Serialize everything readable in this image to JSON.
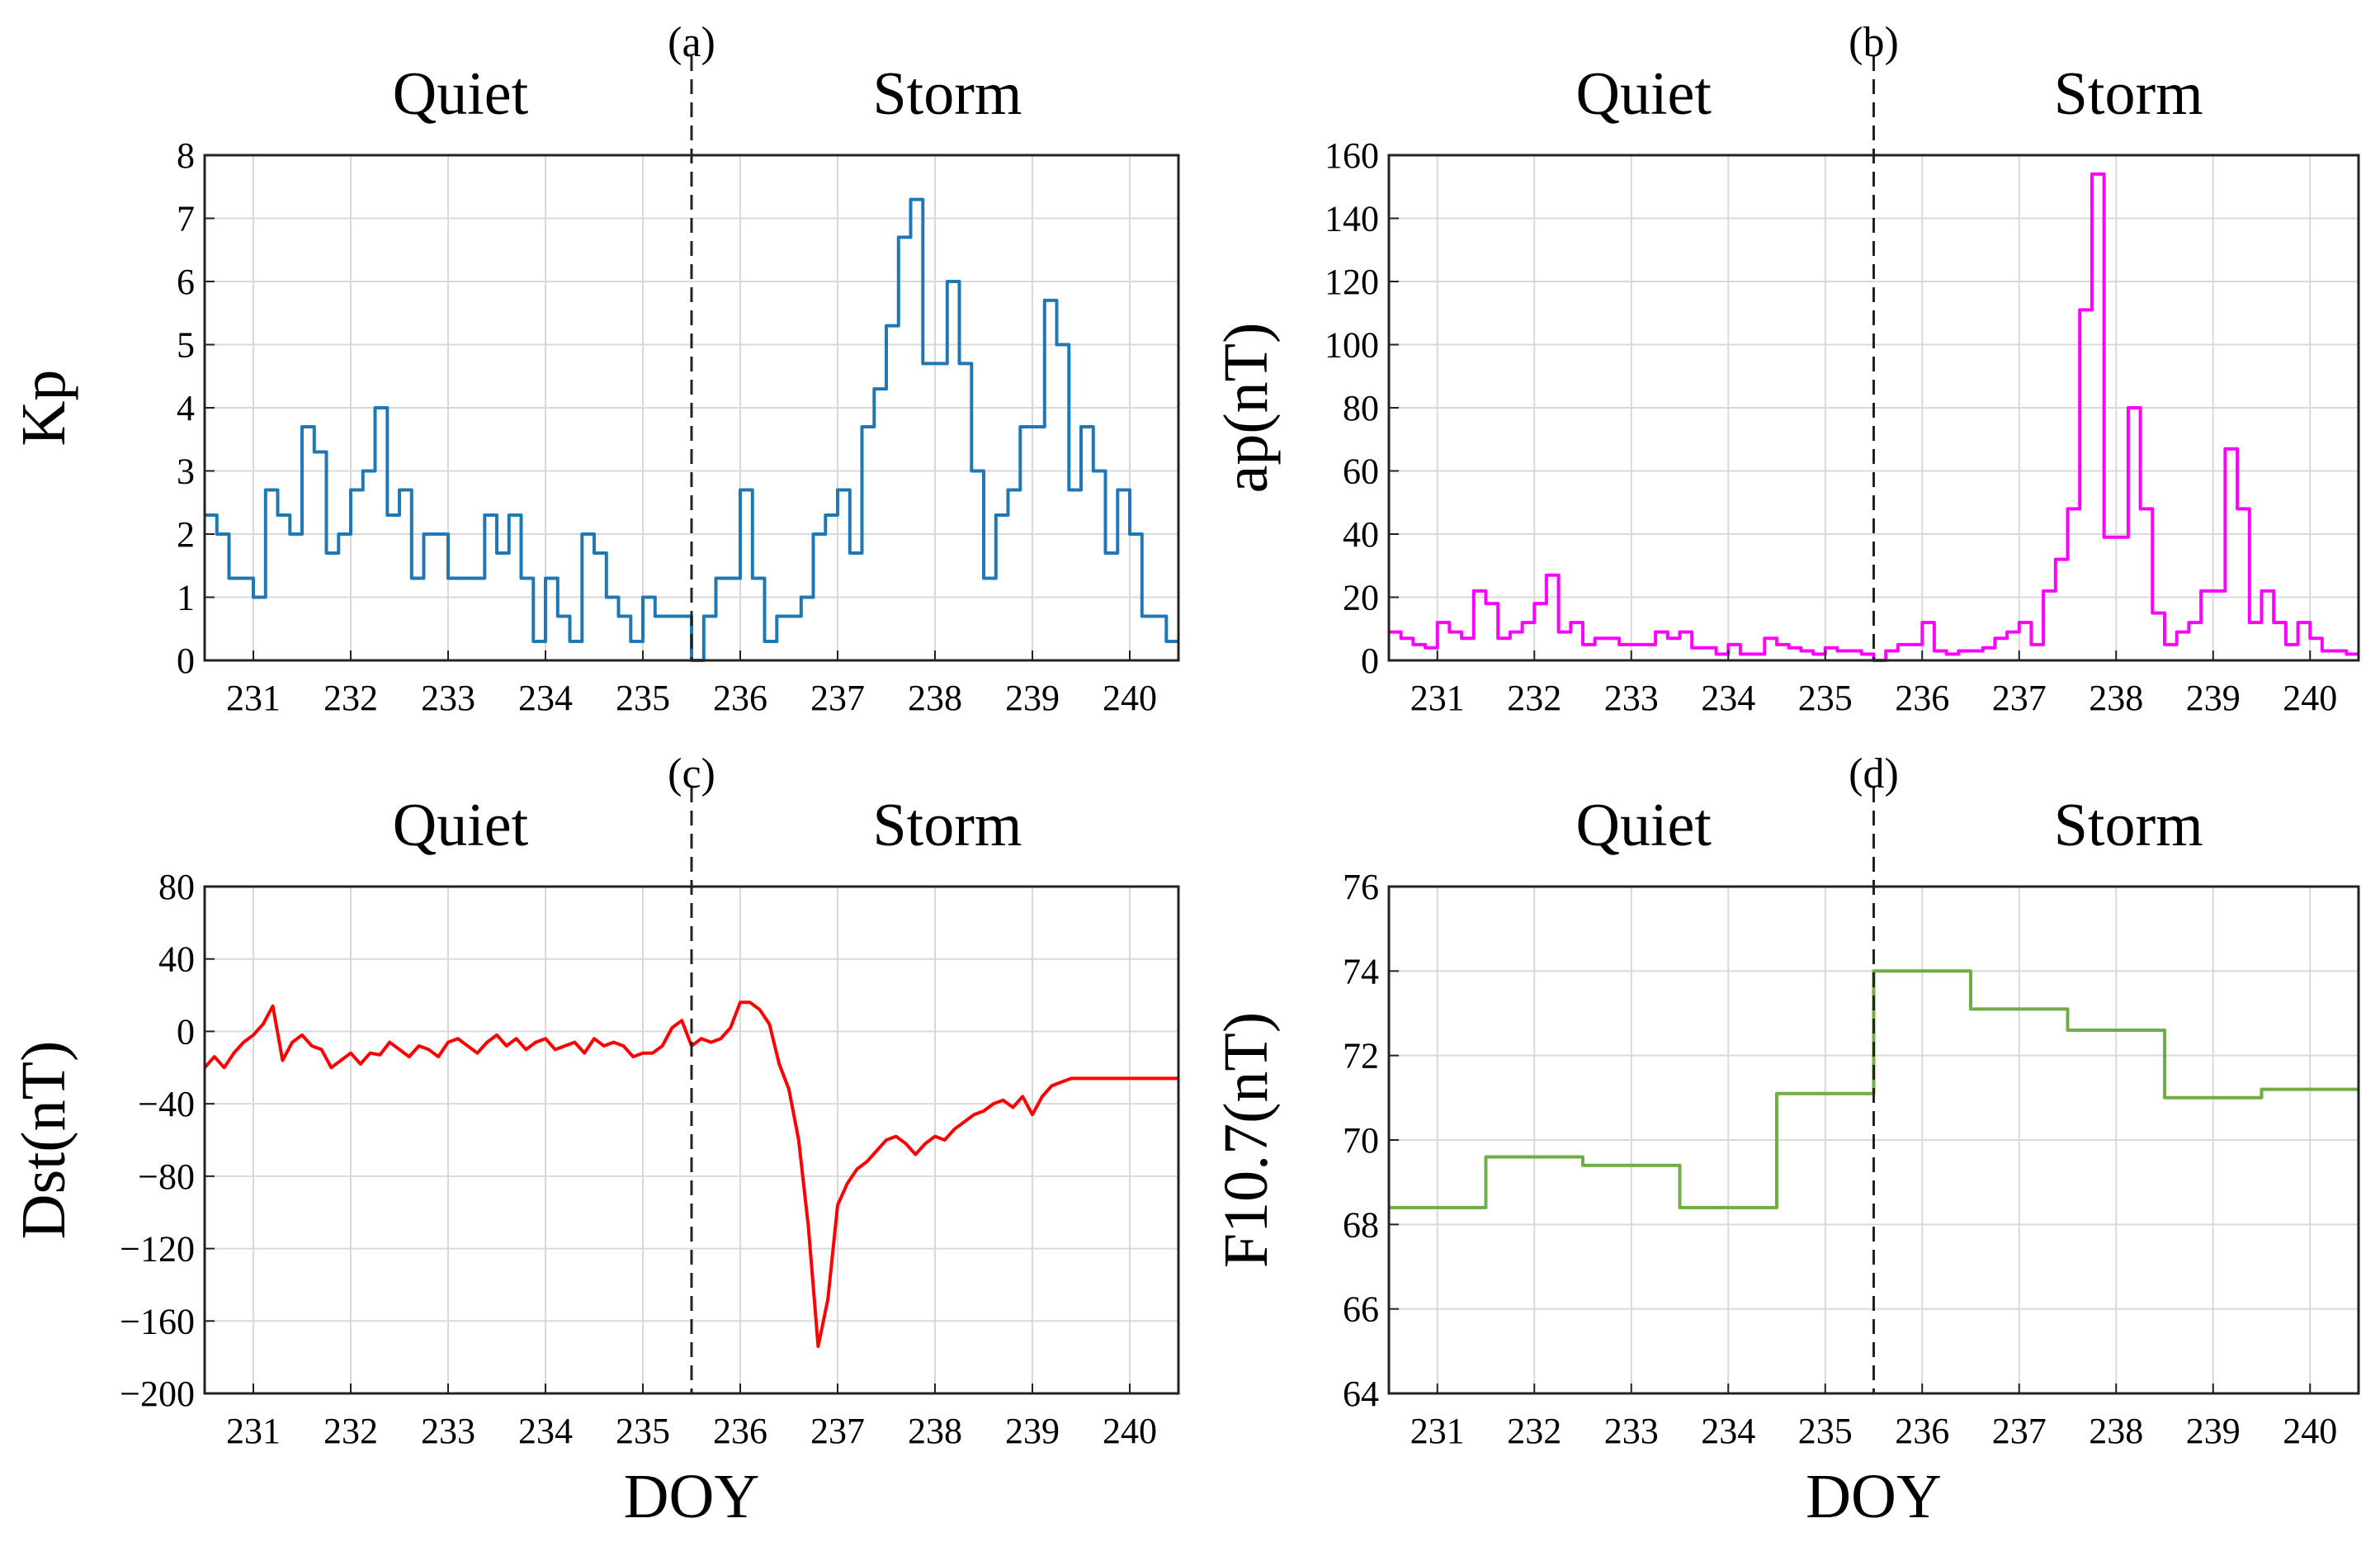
{
  "figure": {
    "shared_xlabel": "DOY",
    "divider_doy": 235.5,
    "period_labels": {
      "left": "Quiet",
      "right": "Storm"
    }
  },
  "chart_data": [
    {
      "id": "a",
      "panel_label": "(a)",
      "type": "line",
      "step": true,
      "color": "#1f77b4",
      "xlabel": "",
      "ylabel": "Kp",
      "xlim": [
        230.5,
        240.5
      ],
      "ylim": [
        0,
        8
      ],
      "xticks": [
        231,
        232,
        233,
        234,
        235,
        236,
        237,
        238,
        239,
        240
      ],
      "yticks": [
        0,
        1,
        2,
        3,
        4,
        5,
        6,
        7,
        8
      ],
      "x": [
        230.5,
        230.625,
        230.75,
        230.875,
        231.0,
        231.125,
        231.25,
        231.375,
        231.5,
        231.625,
        231.75,
        231.875,
        232.0,
        232.125,
        232.25,
        232.375,
        232.5,
        232.625,
        232.75,
        232.875,
        233.0,
        233.125,
        233.25,
        233.375,
        233.5,
        233.625,
        233.75,
        233.875,
        234.0,
        234.125,
        234.25,
        234.375,
        234.5,
        234.625,
        234.75,
        234.875,
        235.0,
        235.125,
        235.25,
        235.375,
        235.5,
        235.625,
        235.75,
        235.875,
        236.0,
        236.125,
        236.25,
        236.375,
        236.5,
        236.625,
        236.75,
        236.875,
        237.0,
        237.125,
        237.25,
        237.375,
        237.5,
        237.625,
        237.75,
        237.875,
        238.0,
        238.125,
        238.25,
        238.375,
        238.5,
        238.625,
        238.75,
        238.875,
        239.0,
        239.125,
        239.25,
        239.375,
        239.5,
        239.625,
        239.75,
        239.875,
        240.0,
        240.125,
        240.25,
        240.375,
        240.5
      ],
      "values": [
        2.3,
        2.0,
        1.3,
        1.3,
        1.0,
        2.7,
        2.3,
        2.0,
        3.7,
        3.3,
        1.7,
        2.0,
        2.7,
        3.0,
        4.0,
        2.3,
        2.7,
        1.3,
        2.0,
        2.0,
        1.3,
        1.3,
        1.3,
        2.3,
        1.7,
        2.3,
        1.3,
        0.3,
        1.3,
        0.7,
        0.3,
        2.0,
        1.7,
        1.0,
        0.7,
        0.3,
        1.0,
        0.7,
        0.7,
        0.7,
        0.0,
        0.7,
        1.3,
        1.3,
        2.7,
        1.3,
        0.3,
        0.7,
        0.7,
        1.0,
        2.0,
        2.3,
        2.7,
        1.7,
        3.7,
        4.3,
        5.3,
        6.7,
        7.3,
        4.7,
        4.7,
        6.0,
        4.7,
        3.0,
        1.3,
        2.3,
        2.7,
        3.7,
        3.7,
        5.7,
        5.0,
        2.7,
        3.7,
        3.0,
        1.7,
        2.7,
        2.0,
        0.7,
        0.7,
        0.3,
        0.3
      ]
    },
    {
      "id": "b",
      "panel_label": "(b)",
      "type": "line",
      "step": true,
      "color": "#ff00ff",
      "xlabel": "",
      "ylabel": "ap(nT)",
      "xlim": [
        230.5,
        240.5
      ],
      "ylim": [
        0,
        160
      ],
      "xticks": [
        231,
        232,
        233,
        234,
        235,
        236,
        237,
        238,
        239,
        240
      ],
      "yticks": [
        0,
        20,
        40,
        60,
        80,
        100,
        120,
        140,
        160
      ],
      "x": [
        230.5,
        230.625,
        230.75,
        230.875,
        231.0,
        231.125,
        231.25,
        231.375,
        231.5,
        231.625,
        231.75,
        231.875,
        232.0,
        232.125,
        232.25,
        232.375,
        232.5,
        232.625,
        232.75,
        232.875,
        233.0,
        233.125,
        233.25,
        233.375,
        233.5,
        233.625,
        233.75,
        233.875,
        234.0,
        234.125,
        234.25,
        234.375,
        234.5,
        234.625,
        234.75,
        234.875,
        235.0,
        235.125,
        235.25,
        235.375,
        235.5,
        235.625,
        235.75,
        235.875,
        236.0,
        236.125,
        236.25,
        236.375,
        236.5,
        236.625,
        236.75,
        236.875,
        237.0,
        237.125,
        237.25,
        237.375,
        237.5,
        237.625,
        237.75,
        237.875,
        238.0,
        238.125,
        238.25,
        238.375,
        238.5,
        238.625,
        238.75,
        238.875,
        239.0,
        239.125,
        239.25,
        239.375,
        239.5,
        239.625,
        239.75,
        239.875,
        240.0,
        240.125,
        240.25,
        240.375,
        240.5
      ],
      "values": [
        9,
        7,
        5,
        4,
        12,
        9,
        7,
        22,
        18,
        7,
        9,
        12,
        18,
        27,
        9,
        12,
        5,
        7,
        7,
        5,
        5,
        5,
        9,
        7,
        9,
        4,
        4,
        2,
        5,
        2,
        2,
        7,
        5,
        4,
        3,
        2,
        4,
        3,
        3,
        2,
        0,
        3,
        5,
        5,
        12,
        3,
        2,
        3,
        3,
        4,
        7,
        9,
        12,
        5,
        22,
        32,
        48,
        111,
        154,
        39,
        39,
        80,
        48,
        15,
        5,
        9,
        12,
        22,
        22,
        67,
        48,
        12,
        22,
        12,
        5,
        12,
        7,
        3,
        3,
        2,
        2
      ]
    },
    {
      "id": "c",
      "panel_label": "(c)",
      "type": "line",
      "step": false,
      "color": "#ff0000",
      "xlabel": "DOY",
      "ylabel": "Dst(nT)",
      "xlim": [
        230.5,
        240.5
      ],
      "ylim": [
        -200,
        80
      ],
      "xticks": [
        231,
        232,
        233,
        234,
        235,
        236,
        237,
        238,
        239,
        240
      ],
      "yticks": [
        -200,
        -160,
        -120,
        -80,
        -40,
        0,
        40,
        80
      ],
      "x": [
        230.5,
        230.6,
        230.7,
        230.8,
        230.9,
        231.0,
        231.1,
        231.2,
        231.3,
        231.4,
        231.5,
        231.6,
        231.7,
        231.8,
        231.9,
        232.0,
        232.1,
        232.2,
        232.3,
        232.4,
        232.5,
        232.6,
        232.7,
        232.8,
        232.9,
        233.0,
        233.1,
        233.2,
        233.3,
        233.4,
        233.5,
        233.6,
        233.7,
        233.8,
        233.9,
        234.0,
        234.1,
        234.2,
        234.3,
        234.4,
        234.5,
        234.6,
        234.7,
        234.8,
        234.9,
        235.0,
        235.1,
        235.2,
        235.3,
        235.4,
        235.5,
        235.6,
        235.7,
        235.8,
        235.9,
        236.0,
        236.1,
        236.2,
        236.3,
        236.4,
        236.5,
        236.6,
        236.7,
        236.8,
        236.9,
        237.0,
        237.1,
        237.2,
        237.3,
        237.4,
        237.5,
        237.6,
        237.7,
        237.8,
        237.9,
        238.0,
        238.1,
        238.2,
        238.3,
        238.4,
        238.5,
        238.6,
        238.7,
        238.8,
        238.9,
        239.0,
        239.1,
        239.2,
        239.3,
        239.4,
        239.5,
        239.6,
        239.7,
        239.8,
        239.9,
        240.0,
        240.1,
        240.2,
        240.3,
        240.4,
        240.5
      ],
      "values": [
        -20,
        -14,
        -20,
        -12,
        -6,
        -2,
        4,
        14,
        -16,
        -6,
        -2,
        -8,
        -10,
        -20,
        -16,
        -12,
        -18,
        -12,
        -13,
        -6,
        -10,
        -14,
        -8,
        -10,
        -14,
        -6,
        -4,
        -8,
        -12,
        -6,
        -2,
        -8,
        -4,
        -10,
        -6,
        -4,
        -10,
        -8,
        -6,
        -12,
        -4,
        -8,
        -6,
        -8,
        -14,
        -12,
        -12,
        -8,
        2,
        6,
        -8,
        -4,
        -6,
        -4,
        2,
        16,
        16,
        12,
        4,
        -18,
        -32,
        -60,
        -108,
        -174,
        -148,
        -96,
        -84,
        -76,
        -72,
        -66,
        -60,
        -58,
        -62,
        -68,
        -62,
        -58,
        -60,
        -54,
        -50,
        -46,
        -44,
        -40,
        -38,
        -42,
        -36,
        -46,
        -36,
        -30,
        -28,
        -26,
        -26,
        -26,
        -26,
        -26,
        -26,
        -26,
        -26,
        -26,
        -26,
        -26,
        -26
      ]
    },
    {
      "id": "d",
      "panel_label": "(d)",
      "type": "line",
      "step": true,
      "color": "#70ad47",
      "xlabel": "DOY",
      "ylabel": "F10.7(nT)",
      "xlim": [
        230.5,
        240.5
      ],
      "ylim": [
        64,
        76
      ],
      "xticks": [
        231,
        232,
        233,
        234,
        235,
        236,
        237,
        238,
        239,
        240
      ],
      "yticks": [
        64,
        66,
        68,
        70,
        72,
        74,
        76
      ],
      "x": [
        230.5,
        231.5,
        232.5,
        233.5,
        234.5,
        235.5,
        236.5,
        237.5,
        238.5,
        239.5,
        240.5
      ],
      "values": [
        68.4,
        69.6,
        69.4,
        68.4,
        71.1,
        74.0,
        73.1,
        72.6,
        71.0,
        71.2,
        71.2
      ]
    }
  ]
}
